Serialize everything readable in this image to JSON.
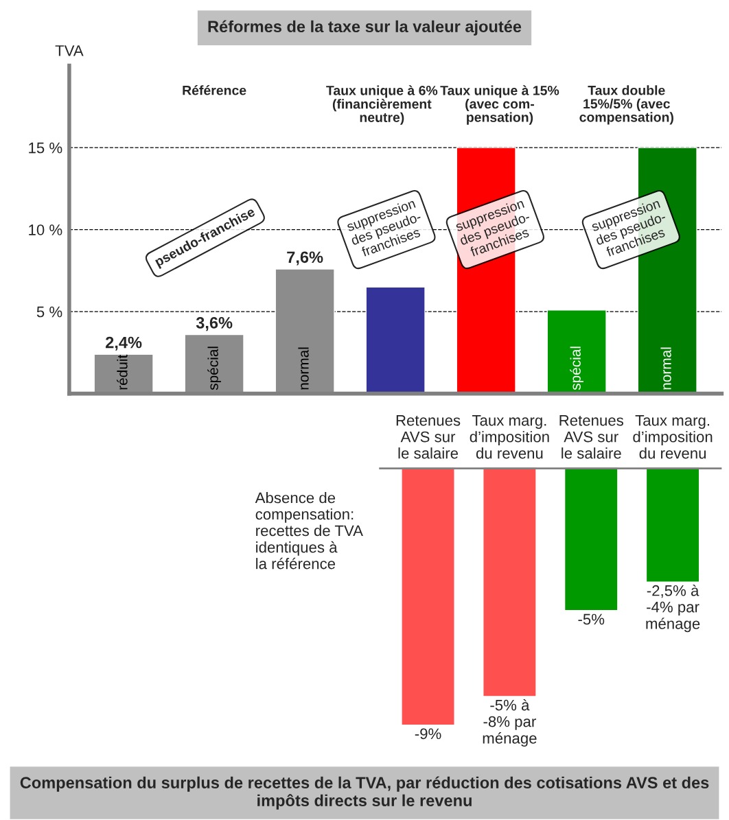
{
  "chart_data": [
    {
      "type": "bar",
      "title": "Réformes de la taxe sur la valeur ajoutée",
      "ylabel": "TVA",
      "categories": [
        "réduit",
        "spécial",
        "normal",
        null,
        null,
        "spécial",
        "normal"
      ],
      "values": [
        2.4,
        3.6,
        7.6,
        6.5,
        15,
        5.1,
        15
      ],
      "colors": [
        "#8c8c8c",
        "#8c8c8c",
        "#8c8c8c",
        "#333399",
        "#ff0000",
        "#009900",
        "#007a00"
      ],
      "value_labels": [
        "2,4%",
        "3,6%",
        "7,6%",
        null,
        null,
        null,
        null
      ],
      "ylim": [
        0,
        20
      ],
      "yticks": [
        {
          "value": 5,
          "label": "5 %"
        },
        {
          "value": 10,
          "label": "10 %"
        },
        {
          "value": 15,
          "label": "15 %"
        }
      ],
      "grid": "y",
      "tick_labels": "y",
      "annotations": [
        "Référence",
        "Taux unique à 6%\n(financièrement\nneutre)",
        "Taux unique à 15%\n(avec com-\npensation)",
        "Taux double\n15%/5% (avec\ncompensation)",
        "pseudo-franchise",
        "suppression\ndes pseudo-\nfranchises",
        "suppression\ndes pseudo-\nfranchises",
        "suppression\ndes pseudo-\nfranchises"
      ]
    },
    {
      "type": "bar",
      "title": "Compensation du surplus de recettes de la TVA, par réduction des cotisations AVS et des impôts directs sur le revenu",
      "categories": [
        "Retenues\nAVS sur\nle salaire",
        "Taux marg.\nd’imposition\ndu revenu",
        "Retenues\nAVS sur\nle salaire",
        "Taux marg.\nd’imposition\ndu revenu"
      ],
      "values": [
        -9,
        -8,
        -5,
        -4
      ],
      "colors": [
        "#ff5050",
        "#ff5050",
        "#009900",
        "#009900"
      ],
      "value_labels": [
        "-9%",
        "-5% à\n-8% par\nménage",
        "-5%",
        "-2,5% à\n-4% par\nménage"
      ],
      "tick_labels": "x",
      "annotations": [
        "Absence de\ncompensation:\nrecettes de TVA\nidentiques à\nla référence"
      ]
    }
  ]
}
